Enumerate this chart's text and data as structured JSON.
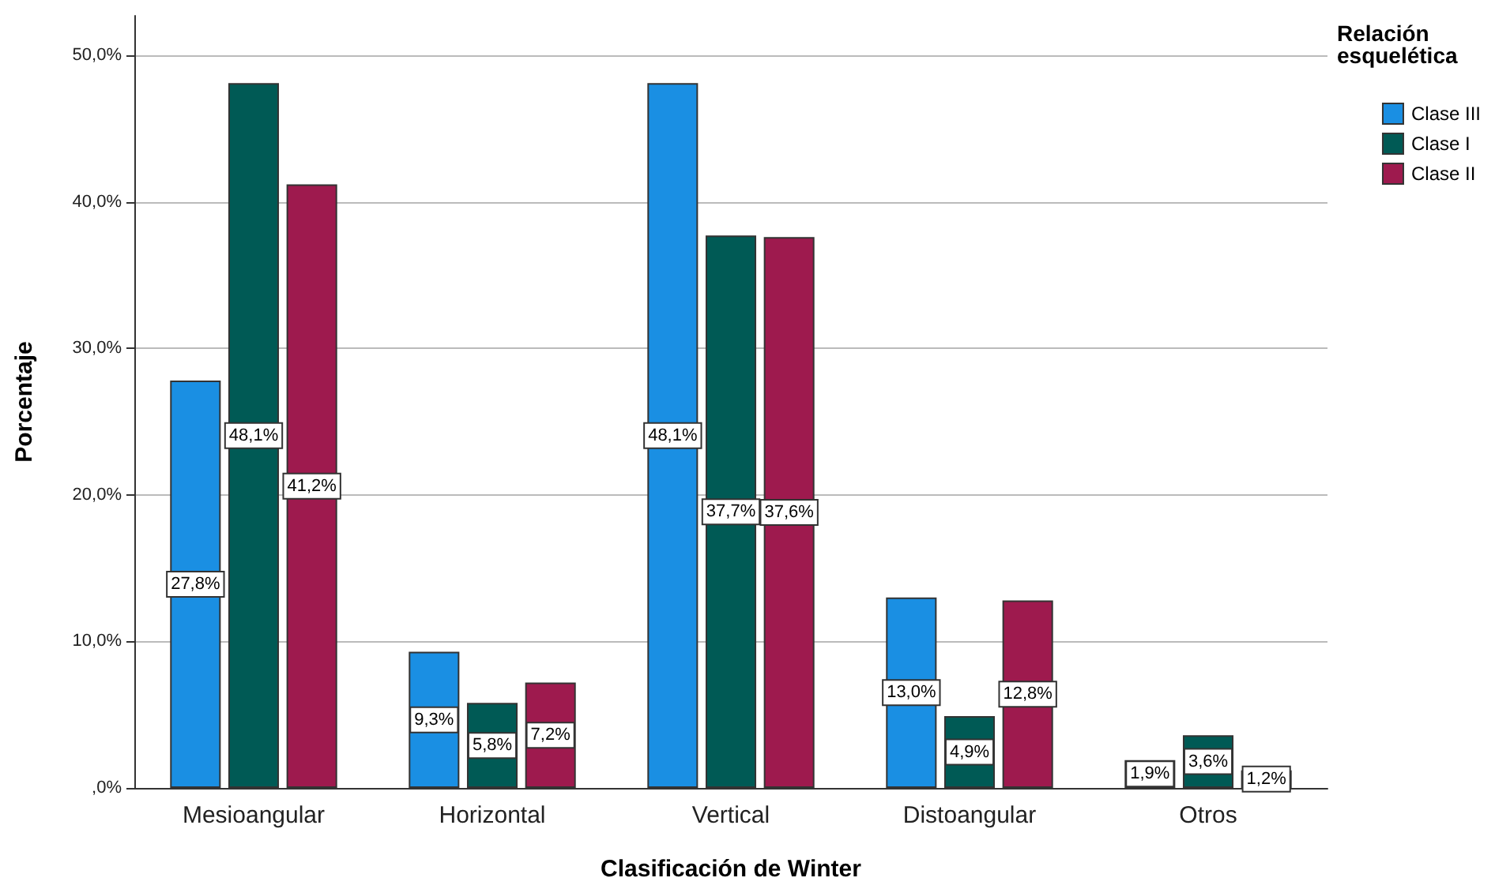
{
  "chart_data": {
    "type": "bar",
    "xlabel": "Clasificación de Winter",
    "ylabel": "Porcentaje",
    "legend_title": "Relación esquelética",
    "categories": [
      "Mesioangular",
      "Horizontal",
      "Vertical",
      "Distoangular",
      "Otros"
    ],
    "series": [
      {
        "name": "Clase III",
        "color": "#1a8fe3",
        "values": [
          27.8,
          9.3,
          48.1,
          13.0,
          1.9
        ],
        "value_labels": [
          "27,8%",
          "9,3%",
          "48,1%",
          "13,0%",
          "1,9%"
        ]
      },
      {
        "name": "Clase I",
        "color": "#005a55",
        "values": [
          48.1,
          5.8,
          37.7,
          4.9,
          3.6
        ],
        "value_labels": [
          "48,1%",
          "5,8%",
          "37,7%",
          "4,9%",
          "3,6%"
        ]
      },
      {
        "name": "Clase II",
        "color": "#9e1a4e",
        "values": [
          41.2,
          7.2,
          37.6,
          12.8,
          1.2
        ],
        "value_labels": [
          "41,2%",
          "7,2%",
          "37,6%",
          "12,8%",
          "1,2%"
        ]
      }
    ],
    "ylim": [
      0,
      52.7
    ],
    "yticks": [
      {
        "value": 0,
        "label": ",0%"
      },
      {
        "value": 10,
        "label": "10,0%"
      },
      {
        "value": 20,
        "label": "20,0%"
      },
      {
        "value": 30,
        "label": "30,0%"
      },
      {
        "value": 40,
        "label": "40,0%"
      },
      {
        "value": 50,
        "label": "50,0%"
      }
    ],
    "grid": "y",
    "legend": "top right"
  }
}
